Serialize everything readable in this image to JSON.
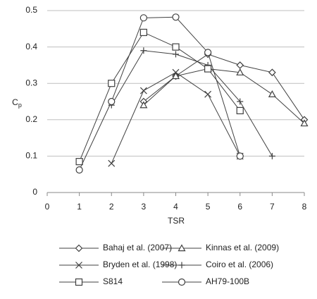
{
  "chart_data": {
    "type": "line",
    "x_label": "TSR",
    "y_label": "C",
    "y_label_sub": "p",
    "xlim": [
      0,
      8
    ],
    "xticks": [
      0,
      1,
      2,
      3,
      4,
      5,
      6,
      7,
      8
    ],
    "ylim": [
      0,
      0.5
    ],
    "yticks": [
      0,
      0.1,
      0.2,
      0.3,
      0.4,
      0.5
    ],
    "grid": true,
    "legend": "bottom",
    "series": [
      {
        "name": "Bahaj et al. (2007)",
        "color": "#404040",
        "marker": "diamond",
        "x": [
          3,
          4,
          5,
          6,
          7,
          8
        ],
        "values": [
          0.25,
          0.32,
          0.38,
          0.35,
          0.33,
          0.2
        ]
      },
      {
        "name": "Kinnas et al. (2009)",
        "color": "#404040",
        "marker": "triangle",
        "x": [
          3,
          4,
          5,
          6,
          7,
          8
        ],
        "values": [
          0.24,
          0.32,
          0.34,
          0.33,
          0.27,
          0.19
        ]
      },
      {
        "name": "Bryden et al. (1998)",
        "color": "#404040",
        "marker": "x",
        "x": [
          2,
          3,
          4,
          5,
          6
        ],
        "values": [
          0.08,
          0.28,
          0.33,
          0.27,
          0.1
        ]
      },
      {
        "name": "Coiro et al. (2006)",
        "color": "#404040",
        "marker": "plus",
        "x": [
          2,
          3,
          4,
          5,
          6,
          7
        ],
        "values": [
          0.24,
          0.39,
          0.38,
          0.35,
          0.25,
          0.1
        ]
      },
      {
        "name": "S814",
        "color": "#404040",
        "marker": "square",
        "x": [
          1,
          2,
          3,
          4,
          5,
          6
        ],
        "values": [
          0.085,
          0.3,
          0.44,
          0.4,
          0.34,
          0.225
        ]
      },
      {
        "name": "AH79-100B",
        "color": "#404040",
        "marker": "circle",
        "x": [
          1,
          2,
          3,
          4,
          5,
          6
        ],
        "values": [
          0.062,
          0.25,
          0.48,
          0.482,
          0.385,
          0.1
        ]
      }
    ]
  }
}
